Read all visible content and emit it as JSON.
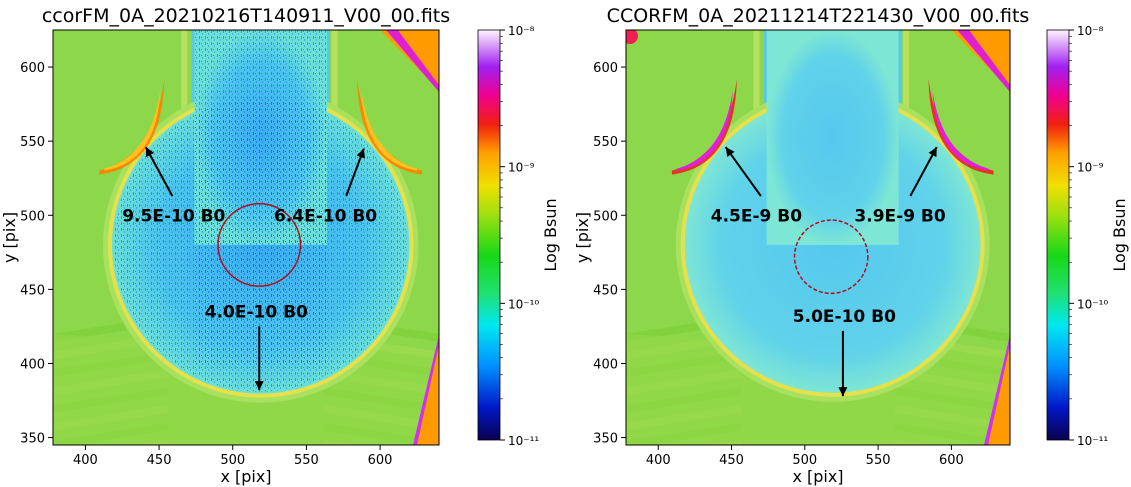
{
  "chart_data": [
    {
      "type": "heatmap",
      "title": "ccorFM_0A_20210216T140911_V00_00.fits",
      "xlabel": "x [pix]",
      "ylabel": "y [pix]",
      "xlim": [
        378,
        640
      ],
      "ylim": [
        345,
        625
      ],
      "xticks": [
        400,
        450,
        500,
        550,
        600
      ],
      "yticks": [
        350,
        400,
        450,
        500,
        550,
        600
      ],
      "colorbar": {
        "label": "Log Bsun",
        "scale": "log",
        "range": [
          1e-11,
          1e-08
        ],
        "tick_labels": [
          "10⁻⁸",
          "10⁻⁹",
          "10⁻¹⁰",
          "10⁻¹¹"
        ]
      },
      "aperture_circle": {
        "center": [
          518,
          480
        ],
        "radius": 28
      },
      "annotations": [
        {
          "text": "9.5E-10 B0",
          "label_at": [
            460,
            500
          ],
          "arrow_from": [
            459,
            513
          ],
          "arrow_to": [
            441,
            546
          ]
        },
        {
          "text": "6.4E-10 B0",
          "label_at": [
            563,
            500
          ],
          "arrow_from": [
            577,
            513
          ],
          "arrow_to": [
            589,
            545
          ]
        },
        {
          "text": "4.0E-10 B0",
          "label_at": [
            516,
            435
          ],
          "arrow_from": [
            518,
            425
          ],
          "arrow_to": [
            518,
            382
          ]
        }
      ]
    },
    {
      "type": "heatmap",
      "title": "CCORFM_0A_20211214T221430_V00_00.fits",
      "xlabel": "x [pix]",
      "ylabel": "y [pix]",
      "xlim": [
        378,
        640
      ],
      "ylim": [
        345,
        625
      ],
      "xticks": [
        400,
        450,
        500,
        550,
        600
      ],
      "yticks": [
        350,
        400,
        450,
        500,
        550,
        600
      ],
      "colorbar": {
        "label": "Log Bsun",
        "scale": "log",
        "range": [
          1e-11,
          1e-08
        ],
        "tick_labels": [
          "10⁻⁸",
          "10⁻⁹",
          "10⁻¹⁰",
          "10⁻¹¹"
        ]
      },
      "aperture_circle": {
        "center": [
          518,
          472
        ],
        "radius": 25
      },
      "annotations": [
        {
          "text": "4.5E-9 B0",
          "label_at": [
            467,
            500
          ],
          "arrow_from": [
            470,
            513
          ],
          "arrow_to": [
            446,
            546
          ]
        },
        {
          "text": "3.9E-9 B0",
          "label_at": [
            565,
            500
          ],
          "arrow_from": [
            572,
            513
          ],
          "arrow_to": [
            590,
            546
          ]
        },
        {
          "text": "5.0E-10 B0",
          "label_at": [
            527,
            432
          ],
          "arrow_from": [
            526,
            422
          ],
          "arrow_to": [
            526,
            378
          ]
        }
      ]
    }
  ]
}
